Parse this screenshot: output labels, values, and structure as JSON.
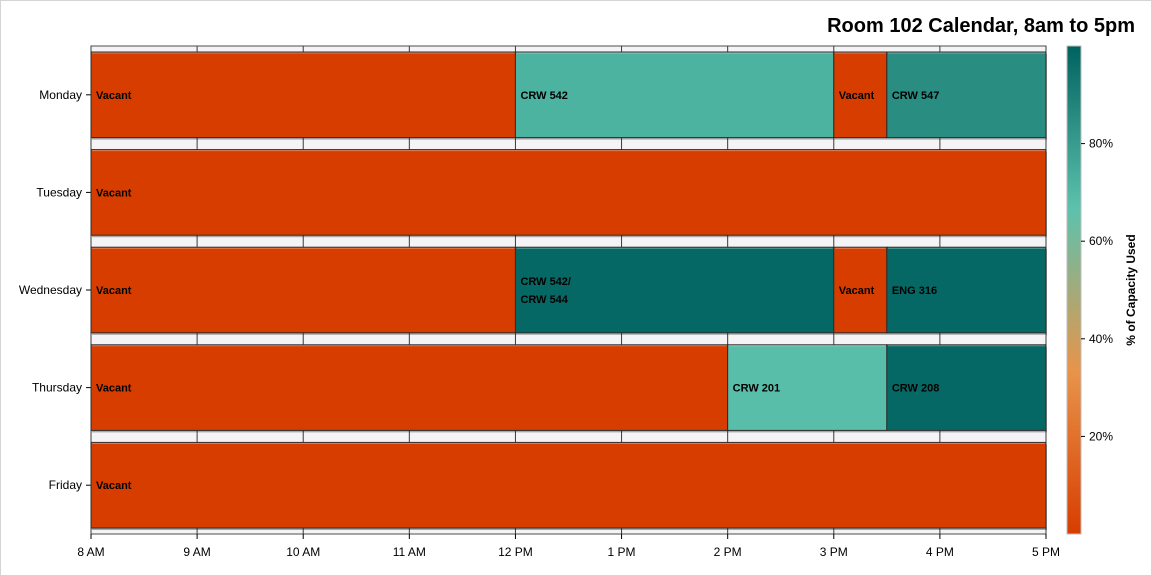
{
  "chart_data": {
    "type": "bar",
    "orientation": "horizontal",
    "title": "Room 102 Calendar, 8am to 5pm",
    "xlim": [
      8,
      17
    ],
    "x_ticks": [
      {
        "value": 8,
        "label": "8 AM"
      },
      {
        "value": 9,
        "label": "9 AM"
      },
      {
        "value": 10,
        "label": "10 AM"
      },
      {
        "value": 11,
        "label": "11 AM"
      },
      {
        "value": 12,
        "label": "12 PM"
      },
      {
        "value": 13,
        "label": "1 PM"
      },
      {
        "value": 14,
        "label": "2 PM"
      },
      {
        "value": 15,
        "label": "3 PM"
      },
      {
        "value": 16,
        "label": "4 PM"
      },
      {
        "value": 17,
        "label": "5 PM"
      }
    ],
    "categories": [
      "Monday",
      "Tuesday",
      "Wednesday",
      "Thursday",
      "Friday"
    ],
    "segments": [
      {
        "day": "Monday",
        "start": 8,
        "end": 12,
        "label": [
          "Vacant"
        ],
        "capacity": 0
      },
      {
        "day": "Monday",
        "start": 12,
        "end": 15,
        "label": [
          "CRW 542"
        ],
        "capacity": 72
      },
      {
        "day": "Monday",
        "start": 15,
        "end": 15.5,
        "label": [
          "Vacant"
        ],
        "capacity": 0
      },
      {
        "day": "Monday",
        "start": 15.5,
        "end": 17,
        "label": [
          "CRW 547"
        ],
        "capacity": 85
      },
      {
        "day": "Tuesday",
        "start": 8,
        "end": 17,
        "label": [
          "Vacant"
        ],
        "capacity": 0
      },
      {
        "day": "Wednesday",
        "start": 8,
        "end": 12,
        "label": [
          "Vacant"
        ],
        "capacity": 0
      },
      {
        "day": "Wednesday",
        "start": 12,
        "end": 15,
        "label": [
          "CRW 542/",
          "CRW 544"
        ],
        "capacity": 98
      },
      {
        "day": "Wednesday",
        "start": 15,
        "end": 15.5,
        "label": [
          "Vacant"
        ],
        "capacity": 0
      },
      {
        "day": "Wednesday",
        "start": 15.5,
        "end": 17,
        "label": [
          "ENG 316"
        ],
        "capacity": 98
      },
      {
        "day": "Thursday",
        "start": 8,
        "end": 14,
        "label": [
          "Vacant"
        ],
        "capacity": 0
      },
      {
        "day": "Thursday",
        "start": 14,
        "end": 15.5,
        "label": [
          "CRW 201"
        ],
        "capacity": 68
      },
      {
        "day": "Thursday",
        "start": 15.5,
        "end": 17,
        "label": [
          "CRW 208"
        ],
        "capacity": 98
      },
      {
        "day": "Friday",
        "start": 8,
        "end": 17,
        "label": [
          "Vacant"
        ],
        "capacity": 0
      }
    ],
    "colorbar": {
      "title": "% of Capacity Used",
      "range": [
        0,
        100
      ],
      "ticks": [
        {
          "value": 20,
          "label": "20%"
        },
        {
          "value": 40,
          "label": "40%"
        },
        {
          "value": 60,
          "label": "60%"
        },
        {
          "value": 80,
          "label": "80%"
        }
      ],
      "colors": [
        "#d83d00",
        "#e8944a",
        "#5cc2ad",
        "#00625f"
      ]
    },
    "grid": true
  }
}
